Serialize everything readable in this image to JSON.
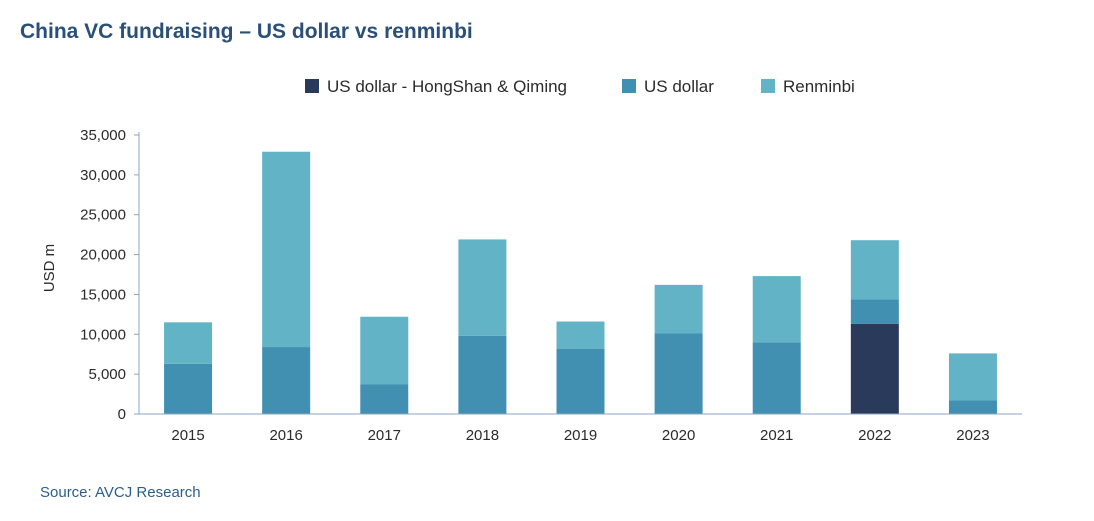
{
  "title": "China VC fundraising – US dollar vs renminbi",
  "source": "Source: AVCJ Research",
  "chart_data": {
    "type": "bar",
    "stacked": true,
    "title": "China VC fundraising – US dollar vs renminbi",
    "xlabel": "",
    "ylabel": "USD m",
    "ylim": [
      0,
      35000
    ],
    "yticks": [
      0,
      5000,
      10000,
      15000,
      20000,
      25000,
      30000,
      35000
    ],
    "ytick_labels": [
      "0",
      "5,000",
      "10,000",
      "15,000",
      "20,000",
      "25,000",
      "30,000",
      "35,000"
    ],
    "grid": false,
    "legend_position": "top",
    "categories": [
      "2015",
      "2016",
      "2017",
      "2018",
      "2019",
      "2020",
      "2021",
      "2022",
      "2023"
    ],
    "series": [
      {
        "name": "US dollar - HongShan & Qiming",
        "color": "#2a3a5a",
        "values": [
          0,
          0,
          0,
          0,
          0,
          0,
          0,
          11300,
          0
        ]
      },
      {
        "name": "US dollar",
        "color": "#4190b2",
        "values": [
          6300,
          8400,
          3700,
          9800,
          8200,
          10100,
          9000,
          3100,
          1700
        ]
      },
      {
        "name": "Renminbi",
        "color": "#62b3c6",
        "values": [
          5200,
          24500,
          8500,
          12100,
          3400,
          6100,
          8300,
          7400,
          5900
        ]
      }
    ]
  }
}
